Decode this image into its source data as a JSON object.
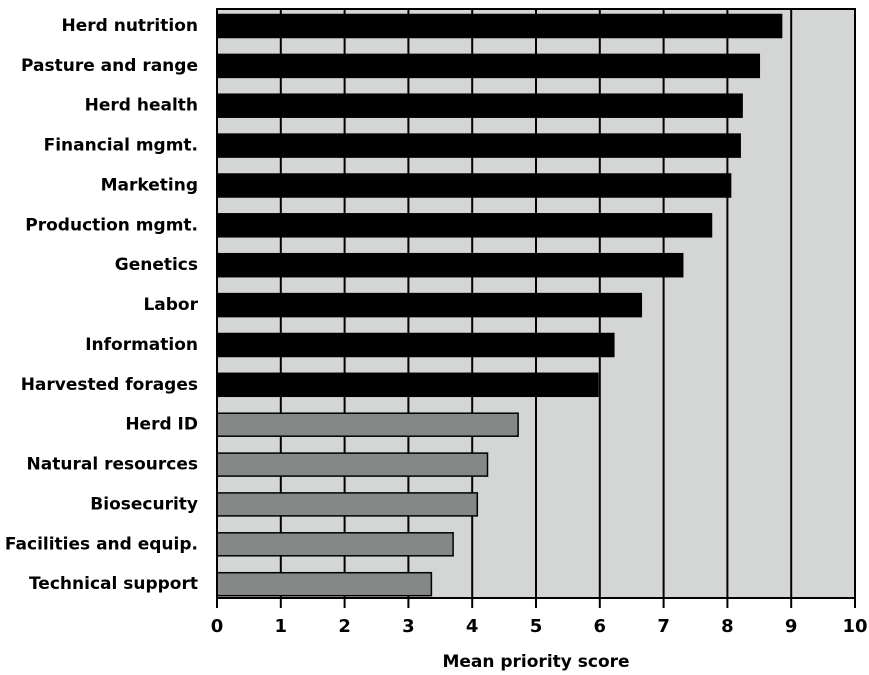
{
  "chart_data": {
    "type": "bar",
    "orientation": "horizontal",
    "title": "",
    "xlabel": "Mean priority score",
    "ylabel": "",
    "xlim": [
      0,
      10
    ],
    "xticks": [
      0,
      1,
      2,
      3,
      4,
      5,
      6,
      7,
      8,
      9,
      10
    ],
    "grid": "vertical",
    "categories": [
      "Herd nutrition",
      "Pasture and range",
      "Herd health",
      "Financial mgmt.",
      "Marketing",
      "Production mgmt.",
      "Genetics",
      "Labor",
      "Information",
      "Harvested forages",
      "Herd ID",
      "Natural resources",
      "Biosecurity",
      "Facilities and equip.",
      "Technical support"
    ],
    "values": [
      8.85,
      8.5,
      8.23,
      8.2,
      8.05,
      7.75,
      7.3,
      6.65,
      6.22,
      5.97,
      4.72,
      4.24,
      4.08,
      3.7,
      3.36
    ],
    "bar_colors": [
      "#000000",
      "#000000",
      "#000000",
      "#000000",
      "#000000",
      "#000000",
      "#000000",
      "#000000",
      "#000000",
      "#000000",
      "#848886",
      "#848886",
      "#848886",
      "#848886",
      "#848886"
    ],
    "background_color": "#d4d6d5",
    "bar_outline_color": "#000000"
  }
}
